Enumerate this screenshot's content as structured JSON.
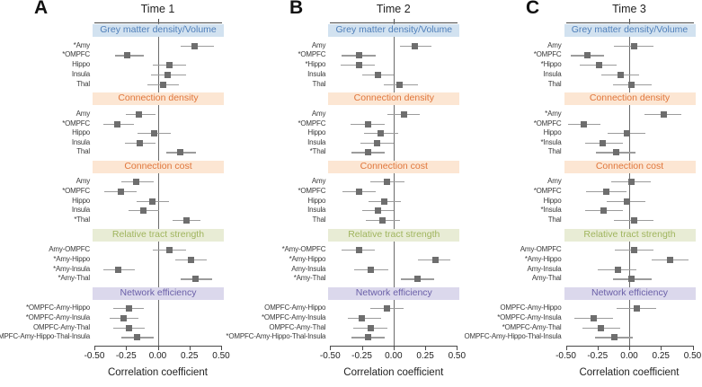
{
  "figure": {
    "axis": {
      "ticks": [
        "-0.50",
        "-0.25",
        "0.00",
        "0.25",
        "0.50"
      ],
      "tick_values": [
        -0.5,
        -0.25,
        0,
        0.25,
        0.5
      ],
      "xlabel": "Correlation coefficient",
      "xlim": [
        -0.5,
        0.5
      ]
    },
    "colors": {
      "marker": "#6e6e6e",
      "ci_line": "#9c9c9c",
      "zero_line": "#6b6b6b",
      "axis_line": "#4a4a4a",
      "section_styles": {
        "blue": {
          "bg": "#d2e2f0",
          "text": "#4f7fba"
        },
        "orange": {
          "bg": "#fce6d3",
          "text": "#e0763b"
        },
        "green": {
          "bg": "#e8ecd5",
          "text": "#a0b55e"
        },
        "purple": {
          "bg": "#dbd8ec",
          "text": "#6b60a8"
        }
      }
    }
  },
  "chart_data": [
    {
      "type": "scatter",
      "subtype": "forest-plot",
      "panel": "A",
      "title": "Time 1",
      "xlabel": "Correlation coefficient",
      "xlim": [
        -0.5,
        0.5
      ],
      "xticks": [
        -0.5,
        -0.25,
        0,
        0.25,
        0.5
      ],
      "sections": [
        {
          "label": "Grey matter density/Volume",
          "color_key": "blue",
          "rows": [
            {
              "label": "*Amy",
              "estimate": 0.29,
              "ci": [
                0.18,
                0.44
              ]
            },
            {
              "label": "*OMPFC",
              "estimate": -0.24,
              "ci": [
                -0.34,
                -0.11
              ]
            },
            {
              "label": "Hippo",
              "estimate": 0.09,
              "ci": [
                -0.04,
                0.22
              ]
            },
            {
              "label": "Insula",
              "estimate": 0.08,
              "ci": [
                -0.05,
                0.22
              ]
            },
            {
              "label": "Thal",
              "estimate": 0.04,
              "ci": [
                -0.08,
                0.17
              ]
            }
          ]
        },
        {
          "label": "Connection density",
          "color_key": "orange",
          "rows": [
            {
              "label": "Amy",
              "estimate": -0.15,
              "ci": [
                -0.25,
                -0.02
              ]
            },
            {
              "label": "*OMPFC",
              "estimate": -0.32,
              "ci": [
                -0.43,
                -0.19
              ]
            },
            {
              "label": "Hippo",
              "estimate": -0.03,
              "ci": [
                -0.16,
                0.1
              ]
            },
            {
              "label": "Insula",
              "estimate": -0.14,
              "ci": [
                -0.26,
                -0.02
              ]
            },
            {
              "label": "Thal",
              "estimate": 0.18,
              "ci": [
                0.07,
                0.3
              ]
            }
          ]
        },
        {
          "label": "Connection cost",
          "color_key": "orange",
          "rows": [
            {
              "label": "Amy",
              "estimate": -0.17,
              "ci": [
                -0.29,
                -0.03
              ]
            },
            {
              "label": "*OMPFC",
              "estimate": -0.29,
              "ci": [
                -0.42,
                -0.17
              ]
            },
            {
              "label": "Hippo",
              "estimate": -0.04,
              "ci": [
                -0.17,
                0.09
              ]
            },
            {
              "label": "Insula",
              "estimate": -0.11,
              "ci": [
                -0.23,
                0.01
              ]
            },
            {
              "label": "*Thal",
              "estimate": 0.23,
              "ci": [
                0.12,
                0.34
              ]
            }
          ]
        },
        {
          "label": "Relative tract strength",
          "color_key": "green",
          "rows": [
            {
              "label": "Amy-OMPFC",
              "estimate": 0.09,
              "ci": [
                -0.04,
                0.22
              ]
            },
            {
              "label": "*Amy-Hippo",
              "estimate": 0.26,
              "ci": [
                0.14,
                0.39
              ]
            },
            {
              "label": "*Amy-Insula",
              "estimate": -0.31,
              "ci": [
                -0.43,
                -0.18
              ]
            },
            {
              "label": "*Amy-Thal",
              "estimate": 0.3,
              "ci": [
                0.18,
                0.43
              ]
            }
          ]
        },
        {
          "label": "Network efficiency",
          "color_key": "purple",
          "rows": [
            {
              "label": "*OMPFC-Amy-Hippo",
              "estimate": -0.23,
              "ci": [
                -0.35,
                -0.11
              ]
            },
            {
              "label": "*OMPFC-Amy-Insula",
              "estimate": -0.27,
              "ci": [
                -0.38,
                -0.15
              ]
            },
            {
              "label": "OMPFC-Amy-Thal",
              "estimate": -0.23,
              "ci": [
                -0.35,
                -0.1
              ]
            },
            {
              "label": "OMPFC-Amy-Hippo-Thal-Insula",
              "estimate": -0.16,
              "ci": [
                -0.29,
                -0.03
              ]
            }
          ]
        }
      ]
    },
    {
      "type": "scatter",
      "subtype": "forest-plot",
      "panel": "B",
      "title": "Time 2",
      "xlabel": "Correlation coefficient",
      "xlim": [
        -0.5,
        0.5
      ],
      "xticks": [
        -0.5,
        -0.25,
        0,
        0.25,
        0.5
      ],
      "sections": [
        {
          "label": "Grey matter density/Volume",
          "color_key": "blue",
          "rows": [
            {
              "label": "Amy",
              "estimate": 0.17,
              "ci": [
                0.05,
                0.3
              ]
            },
            {
              "label": "*OMPFC",
              "estimate": -0.27,
              "ci": [
                -0.41,
                -0.14
              ]
            },
            {
              "label": "*Hippo",
              "estimate": -0.27,
              "ci": [
                -0.42,
                -0.15
              ]
            },
            {
              "label": "Insula",
              "estimate": -0.12,
              "ci": [
                -0.25,
                0.0
              ]
            },
            {
              "label": "Thal",
              "estimate": 0.05,
              "ci": [
                -0.08,
                0.19
              ]
            }
          ]
        },
        {
          "label": "Connection density",
          "color_key": "orange",
          "rows": [
            {
              "label": "Amy",
              "estimate": 0.08,
              "ci": [
                -0.05,
                0.21
              ]
            },
            {
              "label": "*OMPFC",
              "estimate": -0.2,
              "ci": [
                -0.34,
                -0.07
              ]
            },
            {
              "label": "Hippo",
              "estimate": -0.1,
              "ci": [
                -0.23,
                0.04
              ]
            },
            {
              "label": "Insula",
              "estimate": -0.13,
              "ci": [
                -0.26,
                0.0
              ]
            },
            {
              "label": "*Thal",
              "estimate": -0.2,
              "ci": [
                -0.33,
                -0.07
              ]
            }
          ]
        },
        {
          "label": "Connection cost",
          "color_key": "orange",
          "rows": [
            {
              "label": "Amy",
              "estimate": -0.05,
              "ci": [
                -0.18,
                0.09
              ]
            },
            {
              "label": "*OMPFC",
              "estimate": -0.27,
              "ci": [
                -0.4,
                -0.14
              ]
            },
            {
              "label": "Hippo",
              "estimate": -0.07,
              "ci": [
                -0.2,
                0.06
              ]
            },
            {
              "label": "Insula",
              "estimate": -0.12,
              "ci": [
                -0.25,
                0.0
              ]
            },
            {
              "label": "Thal",
              "estimate": -0.09,
              "ci": [
                -0.22,
                0.05
              ]
            }
          ]
        },
        {
          "label": "Relative tract strength",
          "color_key": "green",
          "rows": [
            {
              "label": "*Amy-OMPFC",
              "estimate": -0.27,
              "ci": [
                -0.41,
                -0.15
              ]
            },
            {
              "label": "*Amy-Hippo",
              "estimate": 0.33,
              "ci": [
                0.19,
                0.45
              ]
            },
            {
              "label": "Amy-Insula",
              "estimate": -0.18,
              "ci": [
                -0.31,
                -0.04
              ]
            },
            {
              "label": "*Amy-Thal",
              "estimate": 0.19,
              "ci": [
                0.06,
                0.32
              ]
            }
          ]
        },
        {
          "label": "Network efficiency",
          "color_key": "purple",
          "rows": [
            {
              "label": "OMPFC-Amy-Hippo",
              "estimate": -0.05,
              "ci": [
                -0.18,
                0.08
              ]
            },
            {
              "label": "*OMPFC-Amy-Insula",
              "estimate": -0.25,
              "ci": [
                -0.36,
                -0.1
              ]
            },
            {
              "label": "OMPFC-Amy-Thal",
              "estimate": -0.18,
              "ci": [
                -0.32,
                -0.05
              ]
            },
            {
              "label": "*OMPFC-Amy-Hippo-Thal-Insula",
              "estimate": -0.2,
              "ci": [
                -0.33,
                -0.07
              ]
            }
          ]
        }
      ]
    },
    {
      "type": "scatter",
      "subtype": "forest-plot",
      "panel": "C",
      "title": "Time 3",
      "xlabel": "Correlation coefficient",
      "xlim": [
        -0.5,
        0.5
      ],
      "xticks": [
        -0.5,
        -0.25,
        0,
        0.25,
        0.5
      ],
      "sections": [
        {
          "label": "Grey matter density/Volume",
          "color_key": "blue",
          "rows": [
            {
              "label": "Amy",
              "estimate": 0.04,
              "ci": [
                -0.12,
                0.19
              ]
            },
            {
              "label": "*OMPFC",
              "estimate": -0.33,
              "ci": [
                -0.46,
                -0.2
              ]
            },
            {
              "label": "*Hippo",
              "estimate": -0.24,
              "ci": [
                -0.39,
                -0.1
              ]
            },
            {
              "label": "Insula",
              "estimate": -0.07,
              "ci": [
                -0.22,
                0.08
              ]
            },
            {
              "label": "Thal",
              "estimate": 0.02,
              "ci": [
                -0.13,
                0.18
              ]
            }
          ]
        },
        {
          "label": "Connection density",
          "color_key": "orange",
          "rows": [
            {
              "label": "*Amy",
              "estimate": 0.27,
              "ci": [
                0.12,
                0.41
              ]
            },
            {
              "label": "*OMPFC",
              "estimate": -0.36,
              "ci": [
                -0.48,
                -0.23
              ]
            },
            {
              "label": "Hippo",
              "estimate": -0.02,
              "ci": [
                -0.17,
                0.13
              ]
            },
            {
              "label": "*Insula",
              "estimate": -0.21,
              "ci": [
                -0.35,
                -0.05
              ]
            },
            {
              "label": "Thal",
              "estimate": -0.1,
              "ci": [
                -0.26,
                0.05
              ]
            }
          ]
        },
        {
          "label": "Connection cost",
          "color_key": "orange",
          "rows": [
            {
              "label": "Amy",
              "estimate": 0.02,
              "ci": [
                -0.14,
                0.17
              ]
            },
            {
              "label": "*OMPFC",
              "estimate": -0.18,
              "ci": [
                -0.34,
                -0.02
              ]
            },
            {
              "label": "Hippo",
              "estimate": -0.02,
              "ci": [
                -0.18,
                0.13
              ]
            },
            {
              "label": "*Insula",
              "estimate": -0.2,
              "ci": [
                -0.35,
                -0.05
              ]
            },
            {
              "label": "Thal",
              "estimate": 0.04,
              "ci": [
                -0.12,
                0.19
              ]
            }
          ]
        },
        {
          "label": "Relative tract strength",
          "color_key": "green",
          "rows": [
            {
              "label": "Amy-OMPFC",
              "estimate": 0.04,
              "ci": [
                -0.11,
                0.19
              ]
            },
            {
              "label": "*Amy-Hippo",
              "estimate": 0.32,
              "ci": [
                0.18,
                0.47
              ]
            },
            {
              "label": "Amy-Insula",
              "estimate": -0.09,
              "ci": [
                -0.25,
                0.06
              ]
            },
            {
              "label": "Amy-Thal",
              "estimate": 0.02,
              "ci": [
                -0.13,
                0.18
              ]
            }
          ]
        },
        {
          "label": "Network efficiency",
          "color_key": "purple",
          "rows": [
            {
              "label": "OMPFC-Amy-Hippo",
              "estimate": 0.06,
              "ci": [
                -0.1,
                0.21
              ]
            },
            {
              "label": "*OMPFC-Amy-Insula",
              "estimate": -0.28,
              "ci": [
                -0.43,
                -0.13
              ]
            },
            {
              "label": "*OMPFC-Amy-Thal",
              "estimate": -0.22,
              "ci": [
                -0.37,
                -0.07
              ]
            },
            {
              "label": "OMPFC-Amy-Hippo-Thal-Insula",
              "estimate": -0.12,
              "ci": [
                -0.27,
                0.03
              ]
            }
          ]
        }
      ]
    }
  ]
}
